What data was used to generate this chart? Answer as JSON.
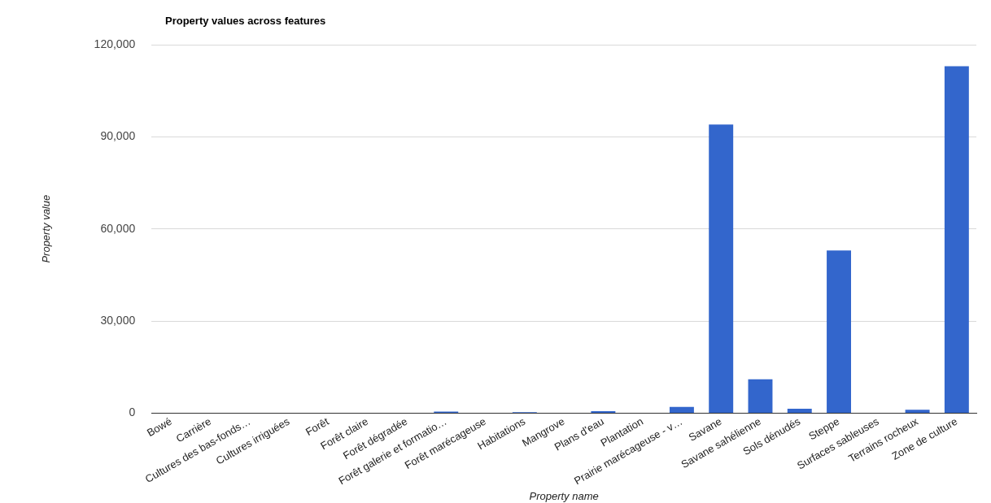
{
  "chart_data": {
    "type": "bar",
    "title": "Property values across features",
    "xlabel": "Property name",
    "ylabel": "Property value",
    "categories": [
      "Bowé",
      "Carrière",
      "Cultures des bas-fonds…",
      "Cultures irriguées",
      "Forêt",
      "Forêt claire",
      "Forêt dégradée",
      "Forêt galerie et formatio…",
      "Forêt marécageuse",
      "Habitations",
      "Mangrove",
      "Plans d'eau",
      "Plantation",
      "Prairie marécageuse - v…",
      "Savane",
      "Savane sahélienne",
      "Sols dénudés",
      "Steppe",
      "Surfaces sableuses",
      "Terrains rocheux",
      "Zone de culture"
    ],
    "values": [
      0,
      0,
      0,
      0,
      0,
      0,
      0,
      500,
      0,
      300,
      0,
      600,
      0,
      2000,
      94000,
      11000,
      1400,
      53000,
      0,
      1100,
      113000
    ],
    "color": "#3366cc",
    "ylim": [
      0,
      120000
    ],
    "yticks": [
      {
        "value": 0,
        "label": "0"
      },
      {
        "value": 30000,
        "label": "30,000"
      },
      {
        "value": 60000,
        "label": "60,000"
      },
      {
        "value": 90000,
        "label": "90,000"
      },
      {
        "value": 120000,
        "label": "120,000"
      }
    ],
    "grid": "y",
    "legend": false
  }
}
